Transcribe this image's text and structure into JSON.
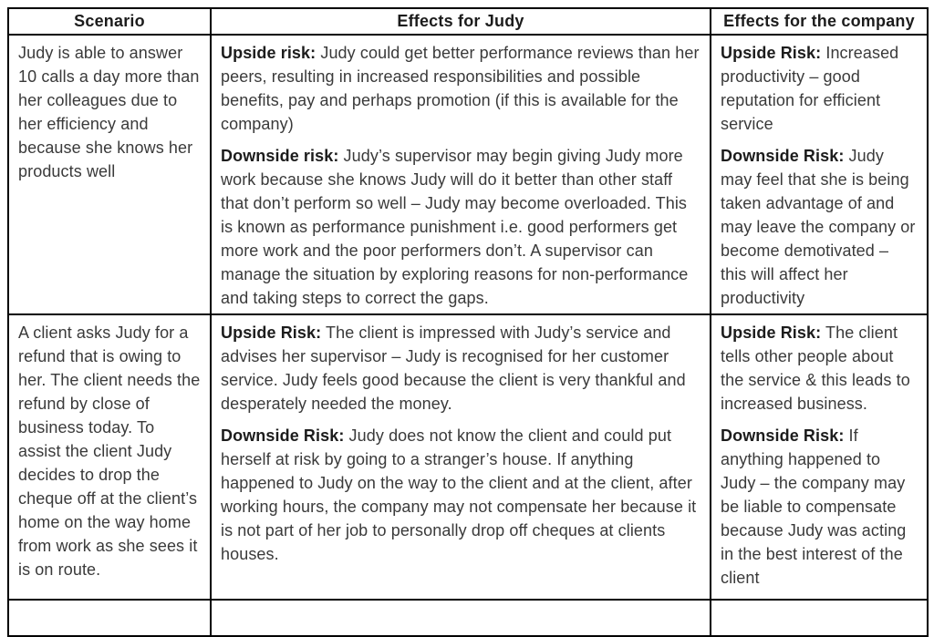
{
  "table": {
    "headers": [
      "Scenario",
      "Effects for Judy",
      "Effects for the company"
    ],
    "rows": [
      {
        "scenario": "Judy is able to answer 10 calls a day more than her colleagues due to her efficiency and because she knows her products well",
        "judy": [
          {
            "label": "Upside risk:",
            "text": "Judy could get better performance reviews than her peers, resulting in increased responsibilities and possible benefits, pay and perhaps promotion (if this is available for the company)"
          },
          {
            "label": "Downside risk:",
            "text": "Judy’s supervisor may begin giving Judy more work because she knows Judy will do it better than other staff that don’t perform so well – Judy may become overloaded.  This is known as performance punishment i.e. good performers get more work and the poor performers don’t.  A supervisor can manage the situation by exploring reasons for non-performance and taking steps to correct the gaps."
          }
        ],
        "company": [
          {
            "label": "Upside Risk:",
            "text": "Increased productivity – good reputation for efficient service"
          },
          {
            "label": "Downside Risk:",
            "text": "Judy may feel that she is being taken advantage of and may leave the company or become demotivated – this will affect her productivity"
          }
        ]
      },
      {
        "scenario": "A client asks Judy for a refund that is owing to her.  The client needs the refund by close of business today.  To assist the client Judy decides to drop the cheque off at the client’s home on the way home from work as she sees it is on route.",
        "judy": [
          {
            "label": "Upside Risk:",
            "text": "The client is impressed with Judy’s service and advises her supervisor – Judy is recognised for her customer service.  Judy feels good because the client is very thankful and desperately needed the money."
          },
          {
            "label": "Downside Risk:",
            "text": "Judy does not know the client and could put herself at risk by going to a stranger’s house.  If anything happened to Judy on the way to the client and at the client, after working hours, the company may not compensate her because it is not part of her job to personally drop off cheques at clients houses."
          }
        ],
        "company": [
          {
            "label": "Upside Risk:",
            "text": "The client tells other people about the service & this leads to increased business."
          },
          {
            "label": "Downside Risk:",
            "text": "If anything happened to Judy – the company may be liable to compensate because Judy was acting in the best interest of the client"
          }
        ]
      }
    ]
  }
}
